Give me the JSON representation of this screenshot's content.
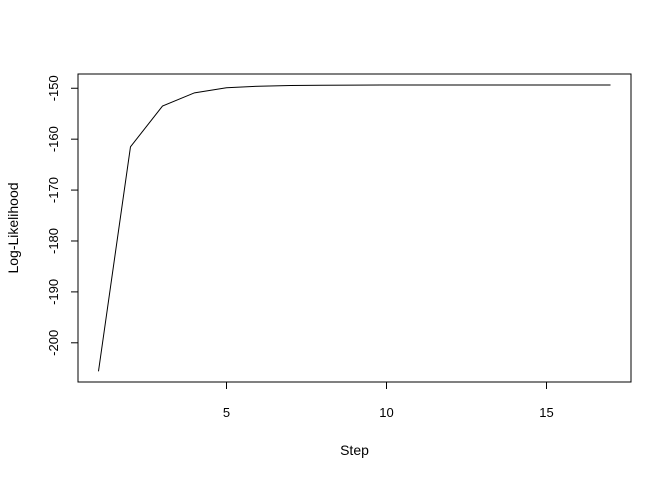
{
  "chart_data": {
    "type": "line",
    "title": "",
    "xlabel": "Step",
    "ylabel": "Log-Likelihood",
    "x": [
      1,
      2,
      3,
      4,
      5,
      6,
      7,
      8,
      9,
      10,
      11,
      12,
      13,
      14,
      15,
      16,
      17
    ],
    "series": [
      {
        "values": [
          -205.6,
          -161.5,
          -153.5,
          -150.9,
          -149.9,
          -149.6,
          -149.45,
          -149.4,
          -149.38,
          -149.37,
          -149.37,
          -149.37,
          -149.37,
          -149.37,
          -149.37,
          -149.37,
          -149.37
        ]
      }
    ],
    "xlim": [
      0.36,
      17.64
    ],
    "ylim": [
      -207.7,
      -147.2
    ],
    "xticks": [
      5,
      10,
      15
    ],
    "xtick_labels": [
      "5",
      "10",
      "15"
    ],
    "yticks": [
      -200,
      -190,
      -180,
      -170,
      -160,
      -150
    ],
    "ytick_labels": [
      "-200",
      "-190",
      "-180",
      "-170",
      "-160",
      "-150"
    ],
    "grid": false,
    "legend": false,
    "line_color": "#000000"
  }
}
